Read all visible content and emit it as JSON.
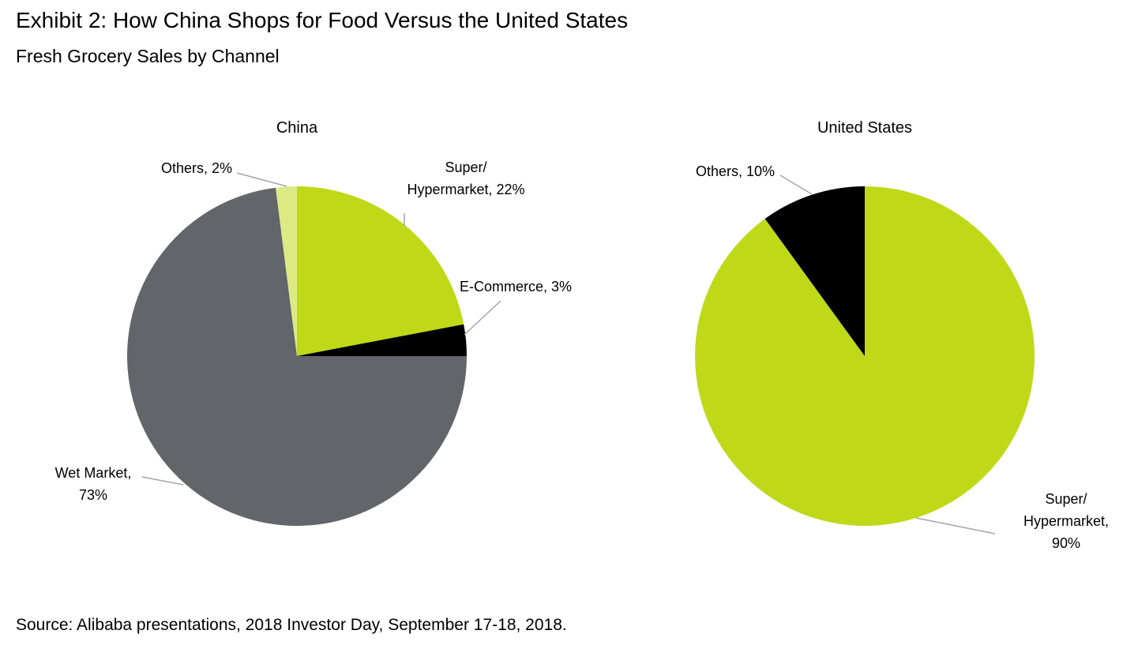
{
  "header": {
    "title": "Exhibit 2: How China Shops for Food Versus the United States",
    "subtitle": "Fresh Grocery Sales by Channel"
  },
  "footer": {
    "source": "Source: Alibaba presentations, 2018 Investor Day, September 17-18, 2018."
  },
  "chart_data": [
    {
      "type": "pie",
      "title": "China",
      "labels": [
        "Super/ Hypermarket",
        "E-Commerce",
        "Wet Market",
        "Others"
      ],
      "values": [
        22,
        3,
        73,
        2
      ],
      "unit": "%",
      "colors": [
        "#bfd919",
        "#000000",
        "#626569",
        "#dcea84"
      ],
      "slice_labels": [
        [
          "Super/",
          "Hypermarket, 22%"
        ],
        [
          "E-Commerce, 3%"
        ],
        [
          "Wet Market,",
          "73%"
        ],
        [
          "Others, 2%"
        ]
      ],
      "legend": "none"
    },
    {
      "type": "pie",
      "title": "United States",
      "labels": [
        "Super/ Hypermarket",
        "Others"
      ],
      "values": [
        90,
        10
      ],
      "unit": "%",
      "colors": [
        "#bfd919",
        "#000000"
      ],
      "slice_labels": [
        [
          "Super/",
          "Hypermarket,",
          "90%"
        ],
        [
          "Others, 10%"
        ]
      ],
      "legend": "none"
    }
  ]
}
